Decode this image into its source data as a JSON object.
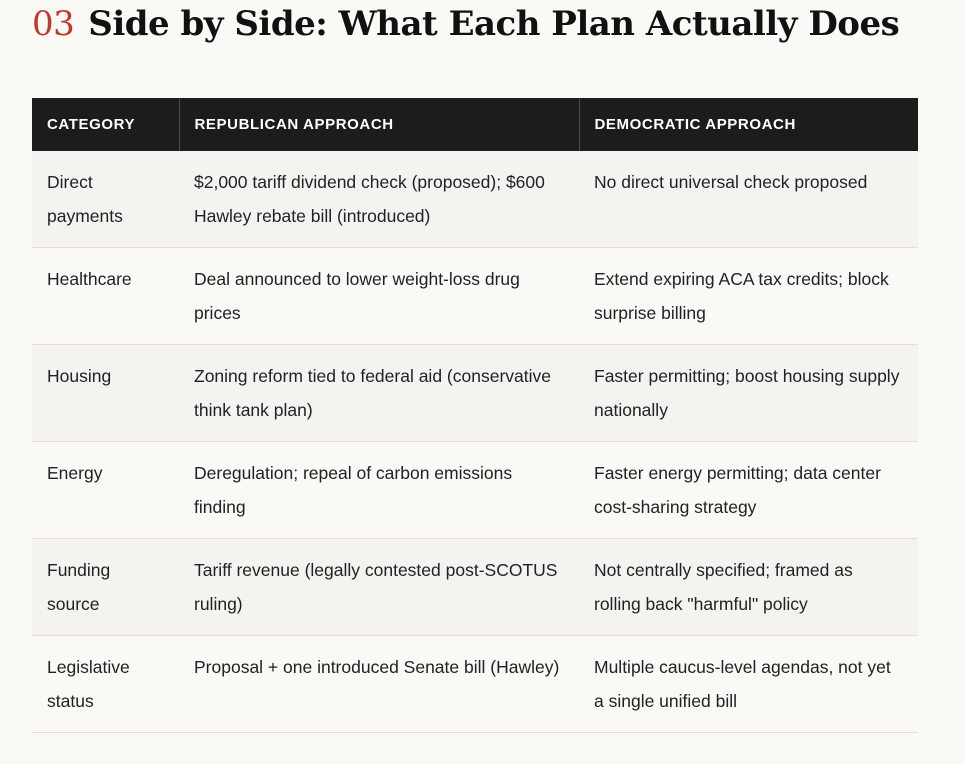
{
  "section": {
    "number": "03",
    "title": "Side by Side: What Each Plan Actually Does"
  },
  "table": {
    "headers": [
      "CATEGORY",
      "REPUBLICAN APPROACH",
      "DEMOCRATIC APPROACH"
    ],
    "rows": [
      {
        "category": "Direct payments",
        "republican": "$2,000 tariff dividend check (proposed); $600 Hawley rebate bill (introduced)",
        "democratic": "No direct universal check proposed"
      },
      {
        "category": "Healthcare",
        "republican": "Deal announced to lower weight-loss drug prices",
        "democratic": "Extend expiring ACA tax credits; block surprise billing"
      },
      {
        "category": "Housing",
        "republican": "Zoning reform tied to federal aid (conservative think tank plan)",
        "democratic": "Faster permitting; boost housing supply nationally"
      },
      {
        "category": "Energy",
        "republican": "Deregulation; repeal of carbon emissions finding",
        "democratic": "Faster energy permitting; data center cost-sharing strategy"
      },
      {
        "category": "Funding source",
        "republican": "Tariff revenue (legally contested post-SCOTUS ruling)",
        "democratic": "Not centrally specified; framed as rolling back \"harmful\" policy"
      },
      {
        "category": "Legislative status",
        "republican": "Proposal + one introduced Senate bill (Hawley)",
        "democratic": "Multiple caucus-level agendas, not yet a single unified bill"
      }
    ]
  }
}
